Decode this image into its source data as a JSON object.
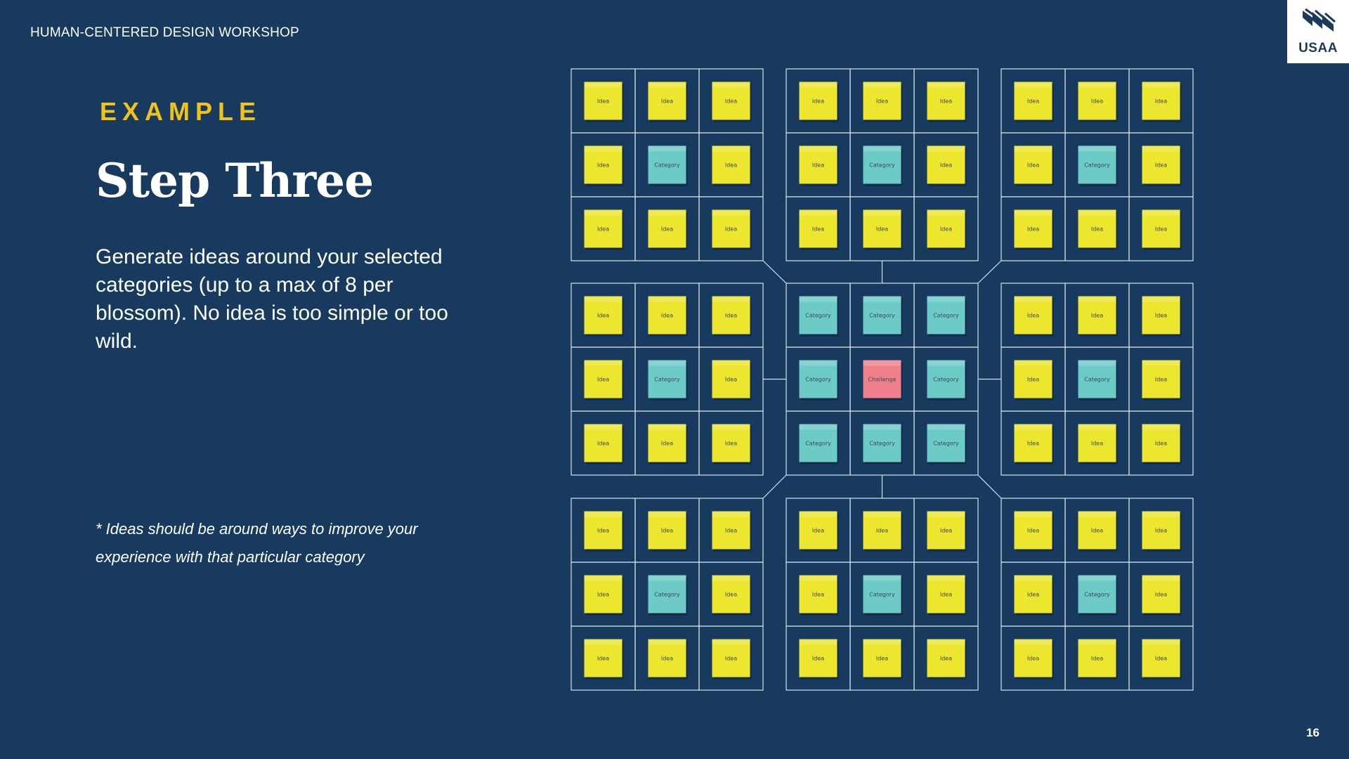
{
  "header": {
    "workshop_title": "HUMAN-CENTERED DESIGN WORKSHOP"
  },
  "brand": {
    "logo_text": "USAA",
    "logo_icon": "usaa-eagle-icon"
  },
  "content": {
    "eyebrow": "EXAMPLE",
    "title": "Step Three",
    "body": "Generate ideas around your selected categories (up to a max of 8 per blossom). No idea is too simple or too wild.",
    "footnote": "* Ideas should be around ways to improve your experience with that particular category"
  },
  "footer": {
    "page_number": "16"
  },
  "diagram": {
    "labels": {
      "idea": "Idea",
      "category": "Category",
      "challenge": "Challenge"
    },
    "colors": {
      "background": "#173a5e",
      "grid_line": "#d8e0ea",
      "idea_note": "#ece62f",
      "category_note": "#6ccbc6",
      "challenge_note": "#f07f8c"
    }
  }
}
